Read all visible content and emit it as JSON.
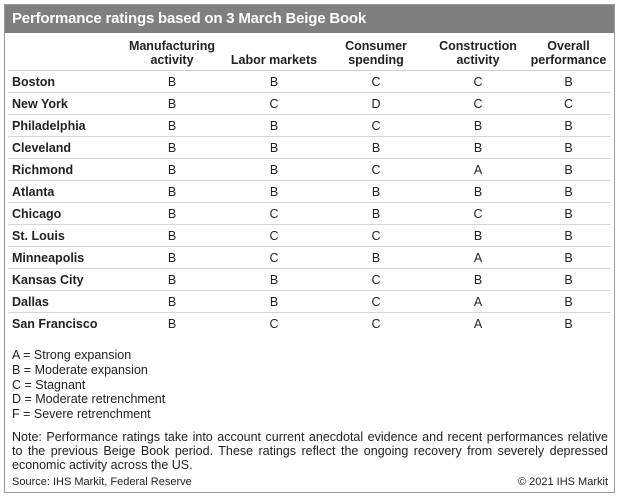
{
  "title": "Performance ratings based on 3 March Beige Book",
  "chart_data": {
    "type": "table",
    "title": "Performance ratings based on 3 March Beige Book",
    "columns": [
      "",
      "Manufacturing activity",
      "Labor markets",
      "Consumer spending",
      "Construction activity",
      "Overall performance"
    ],
    "rows": [
      {
        "city": "Boston",
        "values": [
          "B",
          "B",
          "C",
          "C",
          "B"
        ]
      },
      {
        "city": "New York",
        "values": [
          "B",
          "C",
          "D",
          "C",
          "C"
        ]
      },
      {
        "city": "Philadelphia",
        "values": [
          "B",
          "B",
          "C",
          "B",
          "B"
        ]
      },
      {
        "city": "Cleveland",
        "values": [
          "B",
          "B",
          "B",
          "B",
          "B"
        ]
      },
      {
        "city": "Richmond",
        "values": [
          "B",
          "B",
          "C",
          "A",
          "B"
        ]
      },
      {
        "city": "Atlanta",
        "values": [
          "B",
          "B",
          "B",
          "B",
          "B"
        ]
      },
      {
        "city": "Chicago",
        "values": [
          "B",
          "C",
          "B",
          "C",
          "B"
        ]
      },
      {
        "city": "St. Louis",
        "values": [
          "B",
          "C",
          "C",
          "B",
          "B"
        ]
      },
      {
        "city": "Minneapolis",
        "values": [
          "B",
          "C",
          "B",
          "A",
          "B"
        ]
      },
      {
        "city": "Kansas City",
        "values": [
          "B",
          "B",
          "C",
          "B",
          "B"
        ]
      },
      {
        "city": "Dallas",
        "values": [
          "B",
          "B",
          "C",
          "A",
          "B"
        ]
      },
      {
        "city": "San Francisco",
        "values": [
          "B",
          "C",
          "C",
          "A",
          "B"
        ]
      }
    ]
  },
  "legend": [
    "A = Strong expansion",
    "B = Moderate expansion",
    "C = Stagnant",
    "D = Moderate retrenchment",
    "F = Severe retrenchment"
  ],
  "note": "Note: Performance ratings take into account current anecdotal evidence and recent performances relative to the previous Beige Book period. These ratings reflect the ongoing recovery from severely depressed economic activity across the US.",
  "source": "Source: IHS Markit, Federal Reserve",
  "copyright": "© 2021 IHS Markit",
  "colors": {
    "title_bar": "#7f7f7f",
    "title_text": "#ffffff",
    "border": "#9a9a9a"
  }
}
